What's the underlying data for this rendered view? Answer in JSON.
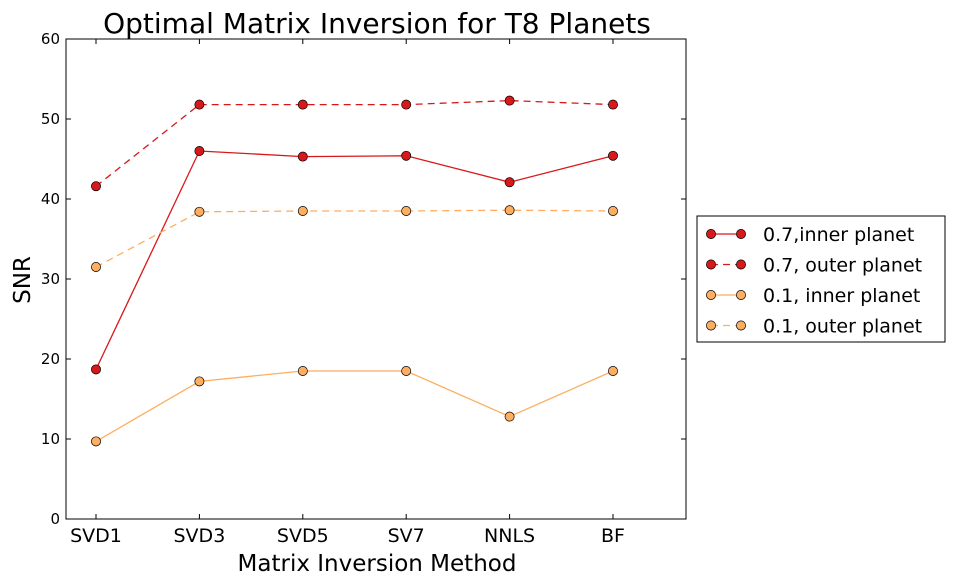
{
  "chart_data": {
    "type": "line",
    "title": "Optimal Matrix Inversion for T8 Planets",
    "xlabel": "Matrix Inversion Method",
    "ylabel": "SNR",
    "categories": [
      "SVD1",
      "SVD3",
      "SVD5",
      "SV7",
      "NNLS",
      "BF"
    ],
    "ylim": [
      0,
      60
    ],
    "yticks": [
      "0",
      "10",
      "20",
      "30",
      "40",
      "50",
      "60"
    ],
    "grid": false,
    "legend_position": "right",
    "series": [
      {
        "name": "0.7,inner planet",
        "color": "#d7191c",
        "dashed": false,
        "values": [
          18.7,
          46.0,
          45.3,
          45.4,
          42.1,
          45.4
        ]
      },
      {
        "name": "0.7, outer planet",
        "color": "#d7191c",
        "dashed": true,
        "values": [
          41.6,
          51.8,
          51.8,
          51.8,
          52.3,
          51.8
        ]
      },
      {
        "name": "0.1, inner planet",
        "color": "#fdae61",
        "dashed": false,
        "values": [
          9.7,
          17.2,
          18.5,
          18.5,
          12.8,
          18.5
        ]
      },
      {
        "name": "0.1, outer planet",
        "color": "#fdae61",
        "dashed": true,
        "values": [
          31.5,
          38.4,
          38.5,
          38.5,
          38.6,
          38.5
        ]
      }
    ]
  }
}
